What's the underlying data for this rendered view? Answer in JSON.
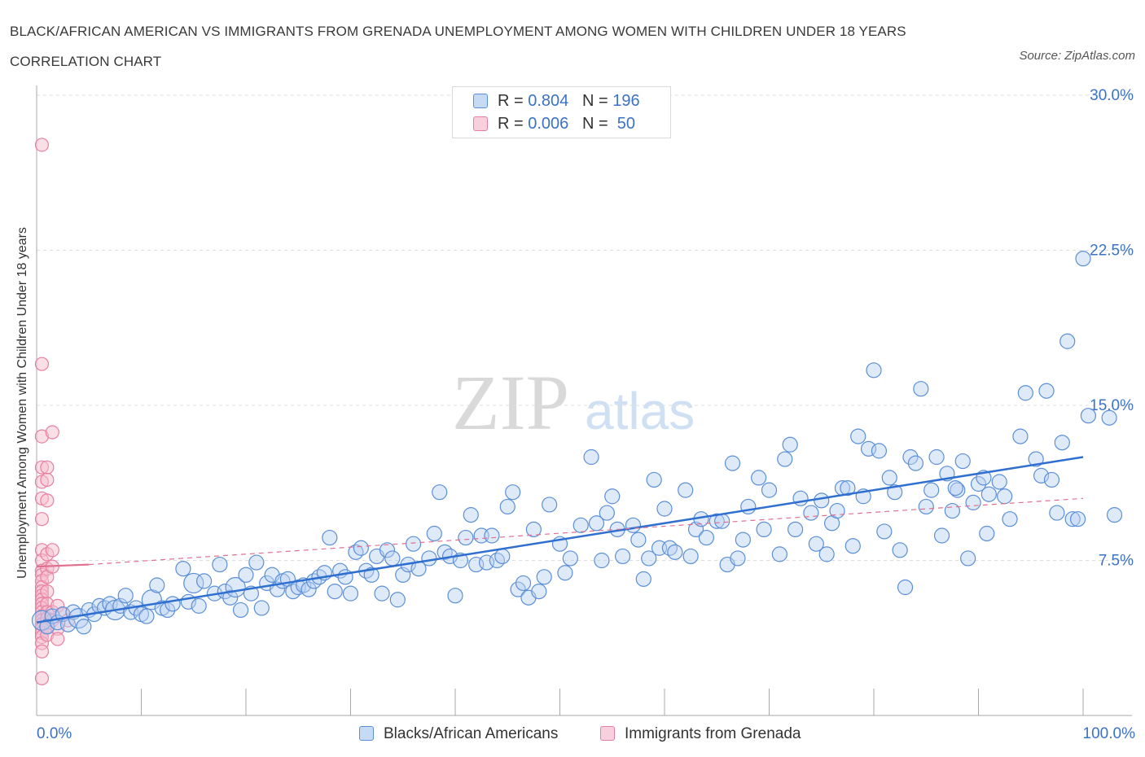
{
  "title": "BLACK/AFRICAN AMERICAN VS IMMIGRANTS FROM GRENADA UNEMPLOYMENT AMONG WOMEN WITH CHILDREN UNDER 18 YEARS CORRELATION CHART",
  "source": "Source: ZipAtlas.com",
  "watermark": {
    "zip": "ZIP",
    "atlas": "atlas"
  },
  "legend": {
    "r_label": "R =",
    "n_label": "N =",
    "series1": {
      "r": "0.804",
      "n": "196"
    },
    "series2": {
      "r": "0.006",
      "n": "50"
    }
  },
  "chart_data": {
    "type": "scatter",
    "ylabel": "Unemployment Among Women with Children Under 18 years",
    "x_tick_labels": [
      "0.0%",
      "100.0%"
    ],
    "y_tick_labels": [
      "7.5%",
      "15.0%",
      "22.5%",
      "30.0%"
    ],
    "y_ticks": [
      7.5,
      15.0,
      22.5,
      30.0
    ],
    "xlim": [
      0,
      100
    ],
    "ylim": [
      0,
      30
    ],
    "grid": true,
    "colors": {
      "series1": "#5b8fd6",
      "series2": "#e87fa0",
      "fill1": "#b9d0f2",
      "fill2": "#f5c0d0",
      "trend1": "#2f6fcf",
      "trend2": "#e0708f"
    },
    "series": [
      {
        "name": "Blacks/African Americans",
        "trend": [
          [
            0,
            4.5
          ],
          [
            100,
            12.5
          ]
        ],
        "points": [
          [
            0.5,
            4.6
          ],
          [
            1.0,
            4.3
          ],
          [
            1.5,
            4.8
          ],
          [
            2.0,
            4.5
          ],
          [
            2.5,
            4.9
          ],
          [
            3.0,
            4.4
          ],
          [
            3.5,
            5.0
          ],
          [
            4.0,
            4.7
          ],
          [
            4.5,
            4.3
          ],
          [
            5.0,
            5.1
          ],
          [
            5.5,
            4.9
          ],
          [
            6.0,
            5.3
          ],
          [
            6.5,
            5.2
          ],
          [
            7.0,
            5.4
          ],
          [
            7.5,
            5.1
          ],
          [
            8.0,
            5.3
          ],
          [
            8.5,
            5.8
          ],
          [
            9.0,
            5.0
          ],
          [
            9.5,
            5.2
          ],
          [
            10.0,
            4.9
          ],
          [
            10.5,
            4.8
          ],
          [
            11.0,
            5.6
          ],
          [
            11.5,
            6.3
          ],
          [
            12.0,
            5.2
          ],
          [
            12.5,
            5.1
          ],
          [
            13.0,
            5.4
          ],
          [
            14.0,
            7.1
          ],
          [
            14.5,
            5.5
          ],
          [
            15.0,
            6.4
          ],
          [
            15.5,
            5.3
          ],
          [
            16.0,
            6.5
          ],
          [
            17.0,
            5.9
          ],
          [
            17.5,
            7.3
          ],
          [
            18.0,
            6.0
          ],
          [
            18.5,
            5.7
          ],
          [
            19.0,
            6.2
          ],
          [
            19.5,
            5.1
          ],
          [
            20.0,
            6.8
          ],
          [
            20.5,
            5.9
          ],
          [
            21.0,
            7.4
          ],
          [
            21.5,
            5.2
          ],
          [
            22.0,
            6.4
          ],
          [
            22.5,
            6.8
          ],
          [
            23.0,
            6.1
          ],
          [
            23.5,
            6.5
          ],
          [
            24.0,
            6.6
          ],
          [
            24.5,
            6.0
          ],
          [
            25.0,
            6.2
          ],
          [
            25.5,
            6.3
          ],
          [
            26.0,
            6.1
          ],
          [
            26.5,
            6.5
          ],
          [
            27.0,
            6.7
          ],
          [
            27.5,
            6.9
          ],
          [
            28.0,
            8.6
          ],
          [
            28.5,
            6.0
          ],
          [
            29.0,
            7.0
          ],
          [
            29.5,
            6.7
          ],
          [
            30.0,
            5.9
          ],
          [
            30.5,
            7.9
          ],
          [
            31.0,
            8.1
          ],
          [
            31.5,
            7.0
          ],
          [
            32.0,
            6.8
          ],
          [
            32.5,
            7.7
          ],
          [
            33.0,
            5.9
          ],
          [
            33.5,
            8.0
          ],
          [
            34.0,
            7.6
          ],
          [
            34.5,
            5.6
          ],
          [
            35.0,
            6.8
          ],
          [
            35.5,
            7.3
          ],
          [
            36.0,
            8.3
          ],
          [
            36.5,
            7.1
          ],
          [
            37.5,
            7.6
          ],
          [
            38.0,
            8.8
          ],
          [
            38.5,
            10.8
          ],
          [
            39.0,
            7.9
          ],
          [
            39.5,
            7.7
          ],
          [
            40.0,
            5.8
          ],
          [
            40.5,
            7.5
          ],
          [
            41.0,
            8.6
          ],
          [
            41.5,
            9.7
          ],
          [
            42.0,
            7.3
          ],
          [
            42.5,
            8.7
          ],
          [
            43.0,
            7.4
          ],
          [
            43.5,
            8.7
          ],
          [
            44.0,
            7.5
          ],
          [
            44.5,
            7.7
          ],
          [
            45.0,
            10.1
          ],
          [
            45.5,
            10.8
          ],
          [
            46.0,
            6.1
          ],
          [
            46.5,
            6.4
          ],
          [
            47.0,
            5.7
          ],
          [
            47.5,
            9.0
          ],
          [
            48.0,
            6.0
          ],
          [
            48.5,
            6.7
          ],
          [
            49.0,
            10.2
          ],
          [
            50.0,
            8.3
          ],
          [
            50.5,
            6.9
          ],
          [
            51.0,
            7.6
          ],
          [
            52.0,
            9.2
          ],
          [
            53.0,
            12.5
          ],
          [
            53.5,
            9.3
          ],
          [
            54.0,
            7.5
          ],
          [
            55.0,
            10.6
          ],
          [
            55.5,
            9.0
          ],
          [
            56.0,
            7.7
          ],
          [
            57.0,
            9.2
          ],
          [
            57.5,
            8.5
          ],
          [
            58.0,
            6.6
          ],
          [
            58.5,
            7.6
          ],
          [
            59.0,
            11.4
          ],
          [
            59.5,
            8.1
          ],
          [
            60.0,
            10.0
          ],
          [
            60.5,
            8.1
          ],
          [
            61.0,
            7.9
          ],
          [
            62.0,
            10.9
          ],
          [
            62.5,
            7.7
          ],
          [
            63.0,
            9.0
          ],
          [
            63.5,
            9.5
          ],
          [
            64.0,
            8.6
          ],
          [
            65.0,
            9.4
          ],
          [
            65.5,
            9.4
          ],
          [
            66.0,
            7.3
          ],
          [
            66.5,
            12.2
          ],
          [
            67.0,
            7.6
          ],
          [
            67.5,
            8.5
          ],
          [
            68.0,
            10.1
          ],
          [
            69.0,
            11.5
          ],
          [
            69.5,
            9.0
          ],
          [
            70.0,
            10.9
          ],
          [
            71.0,
            7.8
          ],
          [
            71.5,
            12.4
          ],
          [
            72.0,
            13.1
          ],
          [
            72.5,
            9.0
          ],
          [
            73.0,
            10.5
          ],
          [
            74.0,
            9.8
          ],
          [
            74.5,
            8.3
          ],
          [
            75.0,
            10.4
          ],
          [
            75.5,
            7.8
          ],
          [
            76.0,
            9.3
          ],
          [
            76.5,
            9.9
          ],
          [
            77.0,
            11.0
          ],
          [
            77.5,
            11.0
          ],
          [
            78.0,
            8.2
          ],
          [
            78.5,
            13.5
          ],
          [
            79.0,
            10.6
          ],
          [
            79.5,
            12.9
          ],
          [
            80.0,
            16.7
          ],
          [
            80.5,
            12.8
          ],
          [
            81.0,
            8.9
          ],
          [
            81.5,
            11.5
          ],
          [
            82.0,
            10.8
          ],
          [
            82.5,
            8.0
          ],
          [
            83.0,
            6.2
          ],
          [
            83.5,
            12.5
          ],
          [
            84.0,
            12.2
          ],
          [
            84.5,
            15.8
          ],
          [
            85.0,
            10.1
          ],
          [
            85.5,
            10.9
          ],
          [
            86.0,
            12.5
          ],
          [
            86.5,
            8.7
          ],
          [
            87.0,
            11.7
          ],
          [
            87.5,
            9.9
          ],
          [
            88.0,
            10.9
          ],
          [
            88.5,
            12.3
          ],
          [
            89.0,
            7.6
          ],
          [
            89.5,
            10.3
          ],
          [
            90.0,
            11.2
          ],
          [
            90.5,
            11.5
          ],
          [
            91.0,
            10.7
          ],
          [
            92.0,
            11.3
          ],
          [
            92.5,
            10.6
          ],
          [
            93.0,
            9.5
          ],
          [
            94.0,
            13.5
          ],
          [
            94.5,
            15.6
          ],
          [
            95.5,
            12.4
          ],
          [
            96.0,
            11.6
          ],
          [
            96.5,
            15.7
          ],
          [
            97.0,
            11.4
          ],
          [
            98.5,
            18.1
          ],
          [
            99.0,
            9.5
          ],
          [
            99.5,
            9.5
          ],
          [
            100.0,
            22.1
          ],
          [
            100.5,
            14.5
          ],
          [
            102.5,
            14.4
          ],
          [
            103.0,
            9.7
          ],
          [
            97.5,
            9.8
          ],
          [
            90.8,
            8.8
          ],
          [
            87.8,
            11.0
          ],
          [
            98.0,
            13.2
          ],
          [
            54.5,
            9.8
          ]
        ]
      },
      {
        "name": "Immigrants from Grenada",
        "trend": [
          [
            0,
            7.2
          ],
          [
            5,
            7.3
          ]
        ],
        "trend_dashed": [
          [
            5,
            7.3
          ],
          [
            100,
            10.5
          ]
        ],
        "points": [
          [
            0.5,
            27.6
          ],
          [
            0.5,
            17.0
          ],
          [
            0.5,
            13.5
          ],
          [
            0.5,
            12.0
          ],
          [
            0.5,
            11.3
          ],
          [
            0.5,
            10.5
          ],
          [
            0.5,
            9.5
          ],
          [
            0.5,
            8.0
          ],
          [
            0.5,
            7.5
          ],
          [
            0.5,
            7.0
          ],
          [
            0.5,
            6.8
          ],
          [
            0.5,
            6.5
          ],
          [
            0.5,
            6.2
          ],
          [
            0.5,
            6.0
          ],
          [
            0.5,
            5.8
          ],
          [
            0.5,
            5.6
          ],
          [
            0.5,
            5.4
          ],
          [
            0.5,
            5.2
          ],
          [
            0.5,
            5.0
          ],
          [
            0.5,
            4.8
          ],
          [
            0.5,
            4.6
          ],
          [
            0.5,
            4.4
          ],
          [
            0.5,
            4.2
          ],
          [
            0.5,
            4.0
          ],
          [
            0.5,
            3.8
          ],
          [
            0.5,
            3.5
          ],
          [
            0.5,
            3.1
          ],
          [
            0.5,
            1.8
          ],
          [
            1.0,
            12.0
          ],
          [
            1.0,
            11.4
          ],
          [
            1.0,
            10.4
          ],
          [
            1.0,
            7.8
          ],
          [
            1.0,
            7.1
          ],
          [
            1.0,
            6.7
          ],
          [
            1.0,
            6.0
          ],
          [
            1.0,
            5.4
          ],
          [
            1.0,
            5.0
          ],
          [
            1.0,
            4.7
          ],
          [
            1.0,
            4.3
          ],
          [
            1.0,
            3.9
          ],
          [
            1.5,
            13.7
          ],
          [
            1.5,
            8.0
          ],
          [
            1.5,
            7.2
          ],
          [
            1.5,
            5.0
          ],
          [
            1.5,
            4.6
          ],
          [
            2.0,
            4.2
          ],
          [
            2.0,
            3.7
          ],
          [
            2.0,
            5.3
          ],
          [
            2.5,
            4.9
          ],
          [
            3.0,
            4.6
          ]
        ]
      }
    ]
  }
}
